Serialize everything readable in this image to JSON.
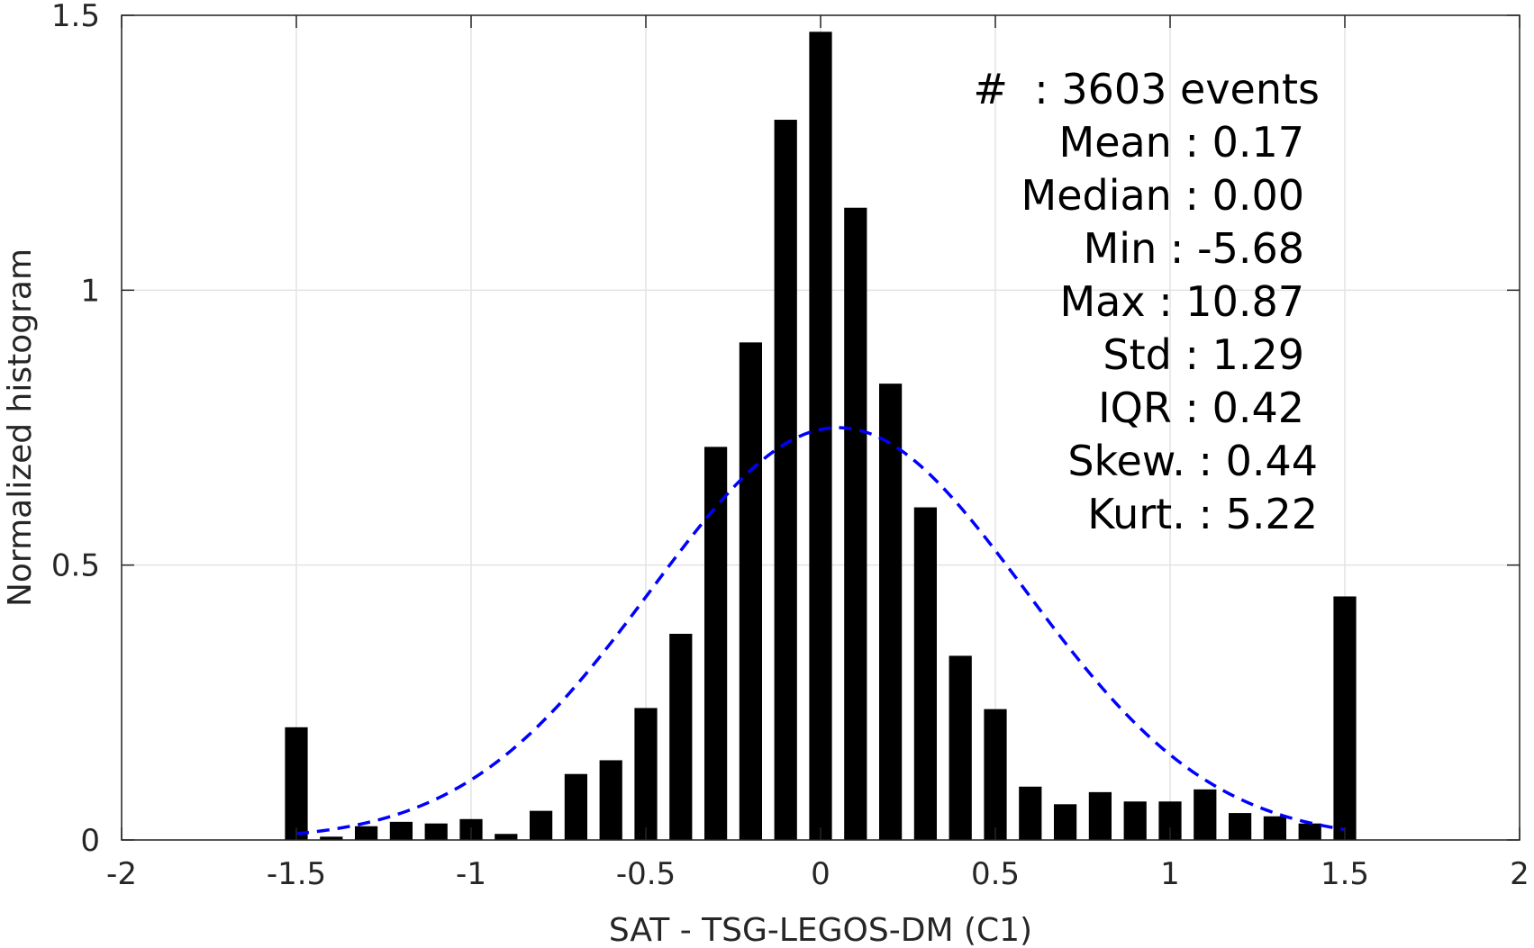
{
  "chart_data": {
    "type": "bar",
    "title": "",
    "xlabel": "SAT - TSG-LEGOS-DM (C1)",
    "ylabel": "Normalized histogram",
    "xlim": [
      -2,
      2
    ],
    "ylim": [
      0,
      1.5
    ],
    "x_ticks": [
      "-2",
      "-1.5",
      "-1",
      "-0.5",
      "0",
      "0.5",
      "1",
      "1.5",
      "2"
    ],
    "y_ticks": [
      "0",
      "0.5",
      "1",
      "1.5"
    ],
    "grid": true,
    "bar_width": 0.065,
    "x": [
      -1.5,
      -1.4,
      -1.3,
      -1.2,
      -1.1,
      -1.0,
      -0.9,
      -0.8,
      -0.7,
      -0.6,
      -0.5,
      -0.4,
      -0.3,
      -0.2,
      -0.1,
      0.0,
      0.1,
      0.2,
      0.3,
      0.4,
      0.5,
      0.6,
      0.7,
      0.8,
      0.9,
      1.0,
      1.1,
      1.2,
      1.3,
      1.4,
      1.5
    ],
    "values": [
      0.205,
      0.006,
      0.025,
      0.033,
      0.03,
      0.038,
      0.011,
      0.053,
      0.12,
      0.145,
      0.24,
      0.375,
      0.715,
      0.905,
      1.31,
      1.47,
      1.15,
      0.83,
      0.605,
      0.335,
      0.238,
      0.097,
      0.065,
      0.087,
      0.07,
      0.07,
      0.092,
      0.049,
      0.043,
      0.03,
      0.443
    ],
    "colors": {
      "bars": "#000000",
      "fit": "#0000ff",
      "grid": "#e3e3e3",
      "axis": "#262626"
    },
    "fit_curve": {
      "style": "dashed",
      "x_range": [
        -1.5,
        1.5
      ],
      "mean": 0.05,
      "sigma": 0.535,
      "peak": 0.75
    },
    "annotation": [
      "#  : 3603 events",
      "Mean : 0.17",
      "Median : 0.00",
      "Min : -5.68",
      "Max : 10.87",
      "Std : 1.29",
      "IQR : 0.42",
      "Skew. : 0.44",
      "Kurt. : 5.22"
    ]
  }
}
